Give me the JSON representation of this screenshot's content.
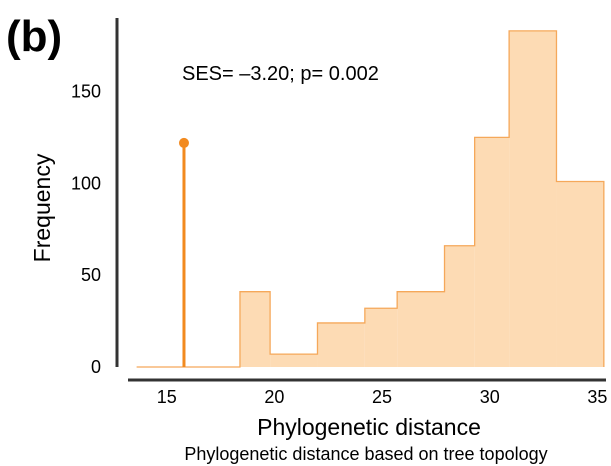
{
  "chart_data": {
    "type": "bar",
    "panel_label": "(b)",
    "annotation": "SES= –3.20; p= 0.002",
    "xlabel": "Phylogenetic distance",
    "subtitle": "Phylogenetic distance based on tree topology",
    "ylabel": "Frequency",
    "xlim": [
      13.2,
      35.4
    ],
    "ylim": [
      0,
      190
    ],
    "xticks": [
      15,
      20,
      25,
      30,
      35
    ],
    "xtick_labels": [
      "15",
      "20",
      "25",
      "30",
      "35"
    ],
    "yticks": [
      0,
      50,
      100,
      150
    ],
    "ytick_labels": [
      "0",
      "50",
      "100",
      "150"
    ],
    "grid": false,
    "histogram": {
      "bin_edges": [
        13.6,
        18.4,
        19.8,
        22.0,
        24.2,
        25.7,
        27.9,
        29.3,
        30.9,
        33.1,
        35.3
      ],
      "counts": [
        0,
        41,
        7,
        24,
        32,
        41,
        66,
        125,
        183,
        101
      ],
      "fill_color": "#fddbb4",
      "edge_color": "#f5a85a"
    },
    "observed": {
      "x": 15.8,
      "y": 122,
      "color": "#f28a1f"
    },
    "axis_color": "#333333"
  }
}
